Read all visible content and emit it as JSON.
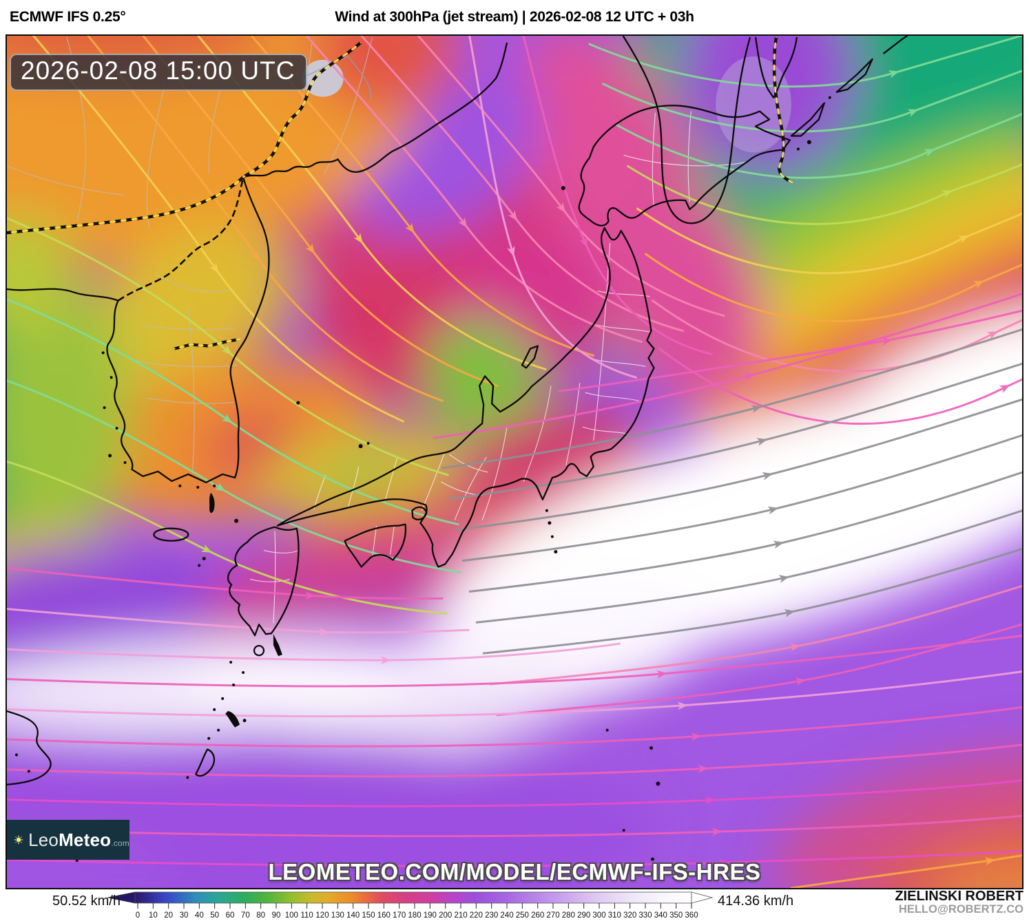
{
  "header": {
    "model": "ECMWF IFS 0.25°",
    "title": "Wind at 300hPa (jet stream) | 2026-02-08 12 UTC + 03h"
  },
  "map": {
    "timestamp": "2026-02-08 15:00 UTC",
    "watermark": "LEOMETEO.COM/MODEL/ECMWF-IFS-HRES",
    "logo": {
      "icon": "sun-icon",
      "brand_light": "Leo",
      "brand_bold": "Meteo",
      "tld": ".com"
    },
    "field_colors": {
      "jet_core_white": "#ffffff",
      "purple": "#a158e2",
      "magenta": "#cf3f9e",
      "crimson": "#d63566",
      "orange": "#ee9a2e",
      "yellow": "#e7c32e",
      "green": "#25b266"
    }
  },
  "footer": {
    "scale_min_label": "50.52 km/h",
    "scale_max_label": "414.36 km/h",
    "scale": {
      "unit": "km/h",
      "tick_min": 0,
      "tick_max": 360,
      "tick_step": 10,
      "ticks": [
        0,
        10,
        20,
        30,
        40,
        50,
        60,
        70,
        80,
        90,
        100,
        110,
        120,
        130,
        140,
        150,
        160,
        170,
        180,
        190,
        200,
        210,
        220,
        230,
        240,
        250,
        260,
        270,
        280,
        290,
        300,
        310,
        320,
        330,
        340,
        350,
        360
      ],
      "gradient_stops": [
        {
          "v": 0,
          "c": "#2a1766"
        },
        {
          "v": 20,
          "c": "#3846c8"
        },
        {
          "v": 40,
          "c": "#2f8fb8"
        },
        {
          "v": 55,
          "c": "#2aa892"
        },
        {
          "v": 70,
          "c": "#2cab62"
        },
        {
          "v": 85,
          "c": "#4fb43c"
        },
        {
          "v": 100,
          "c": "#8fbe30"
        },
        {
          "v": 115,
          "c": "#ccb92c"
        },
        {
          "v": 125,
          "c": "#e2ab2b"
        },
        {
          "v": 140,
          "c": "#ec8c2a"
        },
        {
          "v": 150,
          "c": "#e96a43"
        },
        {
          "v": 160,
          "c": "#e04a62"
        },
        {
          "v": 175,
          "c": "#d63f85"
        },
        {
          "v": 190,
          "c": "#cf3f9e"
        },
        {
          "v": 205,
          "c": "#b845c8"
        },
        {
          "v": 220,
          "c": "#9d4ede"
        },
        {
          "v": 240,
          "c": "#a765e3"
        },
        {
          "v": 260,
          "c": "#b887e9"
        },
        {
          "v": 280,
          "c": "#cda9ef"
        },
        {
          "v": 300,
          "c": "#e0cbf4"
        },
        {
          "v": 320,
          "c": "#efe4f9"
        },
        {
          "v": 340,
          "c": "#f9f4fd"
        },
        {
          "v": 360,
          "c": "#ffffff"
        }
      ]
    },
    "attribution": {
      "name": "ZIELIŃSKI ROBERT",
      "email": "HELLO@ROBERTZ.CO"
    }
  }
}
